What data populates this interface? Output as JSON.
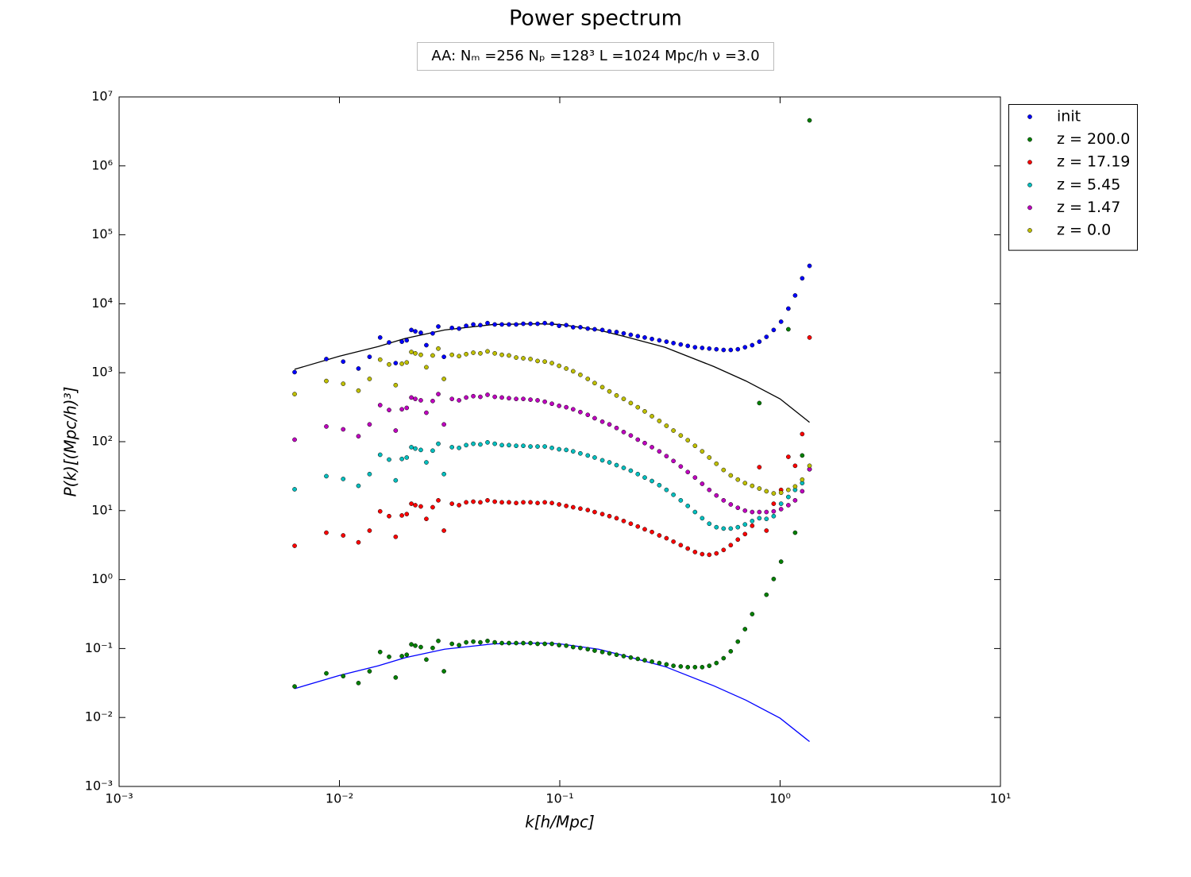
{
  "chart_data": {
    "type": "scatter",
    "title": "Power spectrum",
    "subtitle": "AA:  Nₘ =256  Nₚ =128³   L =1024 Mpc/h  ν =3.0",
    "x_label": "k[h/Mpc]",
    "y_label": "P(k)[(Mpc/h)³]",
    "xscale": "log",
    "yscale": "log",
    "xlim": [
      0.001,
      10
    ],
    "ylim": [
      0.001,
      10000000
    ],
    "xticks": [
      {
        "value": 0.001,
        "label": "10⁻³"
      },
      {
        "value": 0.01,
        "label": "10⁻²"
      },
      {
        "value": 0.1,
        "label": "10⁻¹"
      },
      {
        "value": 1,
        "label": "10⁰"
      },
      {
        "value": 10,
        "label": "10¹"
      }
    ],
    "yticks": [
      {
        "value": 0.001,
        "label": "10⁻³"
      },
      {
        "value": 0.01,
        "label": "10⁻²"
      },
      {
        "value": 0.1,
        "label": "10⁻¹"
      },
      {
        "value": 1,
        "label": "10⁰"
      },
      {
        "value": 10,
        "label": "10¹"
      },
      {
        "value": 100,
        "label": "10²"
      },
      {
        "value": 1000,
        "label": "10³"
      },
      {
        "value": 10000,
        "label": "10⁴"
      },
      {
        "value": 100000,
        "label": "10⁵"
      },
      {
        "value": 1000000,
        "label": "10⁶"
      },
      {
        "value": 10000000,
        "label": "10⁷"
      }
    ],
    "legend": "outside-upper-right",
    "x": [
      0.00626,
      0.00872,
      0.0104,
      0.0122,
      0.0137,
      0.0153,
      0.0168,
      0.018,
      0.0192,
      0.0202,
      0.0212,
      0.0221,
      0.0234,
      0.0248,
      0.0265,
      0.0281,
      0.0298,
      0.0324,
      0.0349,
      0.0376,
      0.0405,
      0.0436,
      0.047,
      0.0507,
      0.0546,
      0.0588,
      0.0634,
      0.0683,
      0.0736,
      0.0793,
      0.0855,
      0.0921,
      0.0993,
      0.107,
      0.115,
      0.124,
      0.134,
      0.144,
      0.156,
      0.168,
      0.181,
      0.195,
      0.21,
      0.226,
      0.243,
      0.262,
      0.283,
      0.305,
      0.328,
      0.354,
      0.381,
      0.411,
      0.443,
      0.477,
      0.514,
      0.554,
      0.597,
      0.643,
      0.693,
      0.747,
      0.805,
      0.867,
      0.935,
      1.01,
      1.09,
      1.17,
      1.26,
      1.36
    ],
    "series": [
      {
        "name": "init",
        "color": "#0000ff",
        "values": [
          1020,
          1580,
          1450,
          1150,
          1700,
          3240,
          2750,
          1380,
          2820,
          2950,
          4170,
          3980,
          3800,
          2510,
          3720,
          4680,
          1700,
          4470,
          4370,
          4790,
          5010,
          4900,
          5250,
          5010,
          5010,
          5010,
          5010,
          5130,
          5130,
          5130,
          5250,
          5130,
          4790,
          4900,
          4570,
          4570,
          4370,
          4270,
          4170,
          3980,
          3890,
          3720,
          3550,
          3390,
          3240,
          3090,
          2950,
          2820,
          2690,
          2570,
          2450,
          2340,
          2290,
          2240,
          2190,
          2140,
          2140,
          2190,
          2340,
          2510,
          2820,
          3310,
          4170,
          5500,
          8510,
          13200,
          23400,
          35500
        ]
      },
      {
        "name": "z = 200.0",
        "color": "#008000",
        "values": [
          0.0282,
          0.0437,
          0.0398,
          0.0316,
          0.0468,
          0.0891,
          0.0759,
          0.038,
          0.0776,
          0.0813,
          0.115,
          0.11,
          0.105,
          0.0692,
          0.102,
          0.129,
          0.0468,
          0.117,
          0.112,
          0.123,
          0.126,
          0.123,
          0.129,
          0.123,
          0.12,
          0.12,
          0.12,
          0.12,
          0.12,
          0.117,
          0.117,
          0.117,
          0.112,
          0.11,
          0.105,
          0.102,
          0.0977,
          0.0933,
          0.0891,
          0.0851,
          0.0813,
          0.0776,
          0.0741,
          0.0708,
          0.0676,
          0.0646,
          0.0617,
          0.0589,
          0.0562,
          0.055,
          0.0537,
          0.0537,
          0.0537,
          0.0562,
          0.0617,
          0.0724,
          0.0912,
          0.126,
          0.191,
          0.316,
          363,
          0.603,
          1.02,
          1.82,
          4270,
          4.79,
          63.1,
          4570000
        ]
      },
      {
        "name": "z = 17.19",
        "color": "#ff0000",
        "values": [
          3.09,
          4.79,
          4.37,
          3.47,
          5.13,
          9.77,
          8.32,
          4.17,
          8.51,
          8.91,
          12.6,
          12.0,
          11.5,
          7.59,
          11.2,
          14.1,
          5.13,
          12.6,
          12.0,
          13.2,
          13.5,
          13.2,
          14.1,
          13.5,
          13.2,
          13.2,
          12.9,
          13.2,
          13.2,
          12.9,
          13.2,
          12.9,
          12.3,
          11.7,
          11.2,
          10.7,
          10.2,
          9.55,
          8.91,
          8.32,
          7.76,
          7.08,
          6.46,
          5.89,
          5.37,
          4.9,
          4.37,
          3.98,
          3.55,
          3.16,
          2.82,
          2.51,
          2.34,
          2.29,
          2.4,
          2.69,
          3.16,
          3.8,
          4.57,
          6.03,
          42.7,
          5.13,
          12.6,
          20.0,
          60.3,
          44.7,
          129,
          3240
        ]
      },
      {
        "name": "z = 5.45",
        "color": "#00bfbf",
        "values": [
          20.4,
          31.6,
          28.8,
          22.9,
          33.9,
          64.6,
          55.0,
          27.5,
          56.2,
          58.9,
          83.2,
          79.4,
          75.9,
          50.1,
          74.1,
          93.3,
          33.9,
          83.2,
          81.3,
          89.1,
          93.3,
          91.2,
          97.7,
          93.3,
          89.1,
          89.1,
          87.1,
          87.1,
          85.1,
          85.1,
          85.1,
          81.3,
          77.6,
          75.9,
          72.4,
          67.6,
          63.1,
          58.9,
          53.7,
          50.1,
          45.7,
          41.7,
          38.0,
          33.9,
          30.2,
          26.9,
          23.4,
          20.0,
          17.0,
          14.1,
          11.7,
          9.55,
          7.76,
          6.46,
          5.75,
          5.5,
          5.5,
          5.75,
          6.31,
          7.08,
          7.76,
          7.59,
          8.32,
          12.6,
          15.8,
          20.0,
          25.1,
          39.8
        ]
      },
      {
        "name": "z = 1.47",
        "color": "#bf00bf",
        "values": [
          107,
          166,
          151,
          120,
          178,
          339,
          288,
          145,
          295,
          309,
          437,
          417,
          398,
          263,
          389,
          490,
          178,
          417,
          398,
          437,
          457,
          447,
          479,
          447,
          437,
          427,
          417,
          417,
          407,
          398,
          380,
          355,
          331,
          316,
          295,
          269,
          245,
          219,
          195,
          178,
          158,
          138,
          123,
          107,
          95.5,
          83.2,
          72.4,
          61.7,
          52.5,
          43.7,
          36.3,
          30.2,
          24.5,
          20.0,
          16.6,
          14.1,
          12.3,
          11.0,
          10.0,
          9.55,
          9.55,
          9.55,
          9.77,
          10.5,
          12.0,
          14.1,
          19.1,
          39.8
        ]
      },
      {
        "name": "z = 0.0",
        "color": "#bfbf00",
        "values": [
          490,
          759,
          692,
          550,
          813,
          1550,
          1320,
          661,
          1350,
          1410,
          2000,
          1910,
          1820,
          1200,
          1780,
          2240,
          813,
          1820,
          1740,
          1860,
          1950,
          1910,
          2040,
          1910,
          1820,
          1780,
          1660,
          1620,
          1580,
          1480,
          1450,
          1380,
          1260,
          1150,
          1050,
          933,
          813,
          708,
          617,
          537,
          468,
          417,
          363,
          316,
          275,
          234,
          200,
          170,
          145,
          123,
          105,
          87.1,
          72.4,
          58.9,
          47.9,
          38.9,
          32.4,
          28.2,
          25.1,
          22.9,
          20.9,
          19.1,
          17.8,
          18.2,
          20.0,
          22.4,
          28.2,
          44.7
        ]
      }
    ],
    "lines": [
      {
        "color": "#000000",
        "x": [
          0.00626,
          0.01,
          0.015,
          0.02,
          0.03,
          0.05,
          0.08,
          0.1,
          0.15,
          0.2,
          0.3,
          0.5,
          0.7,
          1.0,
          1.36
        ],
        "values": [
          1120,
          1740,
          2400,
          3160,
          4170,
          5010,
          5130,
          5010,
          4170,
          3310,
          2340,
          1230,
          759,
          417,
          191
        ]
      },
      {
        "color": "#0000ff",
        "x": [
          0.00626,
          0.01,
          0.015,
          0.02,
          0.03,
          0.05,
          0.08,
          0.1,
          0.15,
          0.2,
          0.3,
          0.5,
          0.7,
          1.0,
          1.36
        ],
        "values": [
          0.0262,
          0.0407,
          0.0562,
          0.074,
          0.0977,
          0.117,
          0.12,
          0.117,
          0.0977,
          0.0775,
          0.0548,
          0.0288,
          0.0178,
          0.00977,
          0.00447
        ]
      }
    ]
  }
}
